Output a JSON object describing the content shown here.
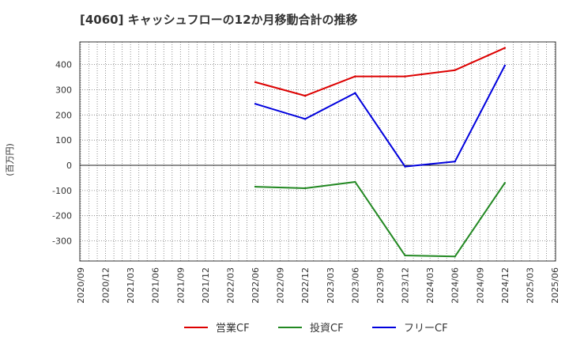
{
  "chart_data": {
    "type": "line",
    "title": "[4060]  キャッシュフローの12か月移動合計の推移",
    "ylabel": "(百万円)",
    "xlabel": "",
    "ylim": [
      -380,
      490
    ],
    "yticks": [
      -300,
      -200,
      -100,
      0,
      100,
      200,
      300,
      400
    ],
    "categories": [
      "2020/09",
      "2020/12",
      "2021/03",
      "2021/06",
      "2021/09",
      "2021/12",
      "2022/03",
      "2022/06",
      "2022/09",
      "2022/12",
      "2023/03",
      "2023/06",
      "2023/09",
      "2023/12",
      "2024/03",
      "2024/06",
      "2024/09",
      "2024/12",
      "2025/03",
      "2025/06"
    ],
    "grid": true,
    "legend_position": "bottom",
    "series": [
      {
        "name": "営業CF",
        "color": "#dd0000",
        "values": [
          null,
          null,
          null,
          null,
          null,
          null,
          null,
          330,
          null,
          276,
          null,
          353,
          null,
          353,
          null,
          378,
          null,
          466,
          null,
          null
        ]
      },
      {
        "name": "投資CF",
        "color": "#228822",
        "values": [
          null,
          null,
          null,
          null,
          null,
          null,
          null,
          -85,
          null,
          -91,
          null,
          -66,
          null,
          -358,
          null,
          -362,
          null,
          -70,
          null,
          null
        ]
      },
      {
        "name": "フリーCF",
        "color": "#0000dd",
        "values": [
          null,
          null,
          null,
          null,
          null,
          null,
          null,
          244,
          null,
          184,
          null,
          287,
          null,
          -5,
          null,
          15,
          null,
          396,
          null,
          null
        ]
      }
    ]
  }
}
